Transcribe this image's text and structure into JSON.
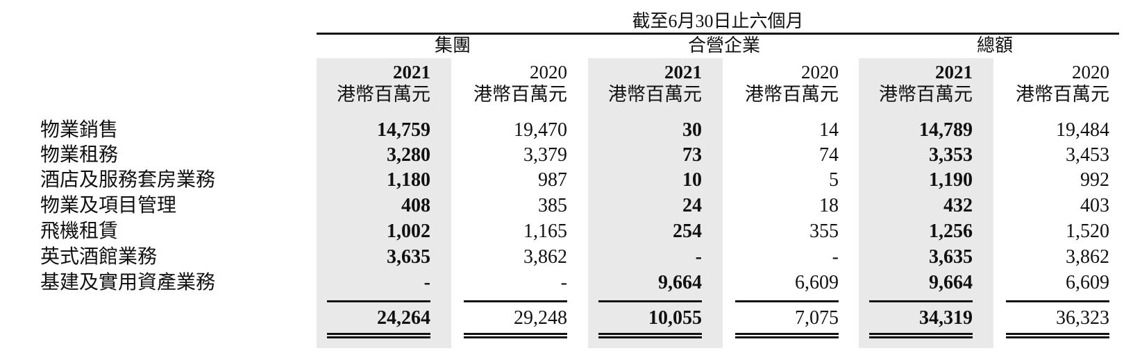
{
  "header": {
    "period": "截至6月30日止六個月",
    "groups": [
      "集團",
      "合營企業",
      "總額"
    ]
  },
  "columns": [
    {
      "year": "2021",
      "unit": "港幣百萬元"
    },
    {
      "year": "2020",
      "unit": "港幣百萬元"
    },
    {
      "year": "2021",
      "unit": "港幣百萬元"
    },
    {
      "year": "2020",
      "unit": "港幣百萬元"
    },
    {
      "year": "2021",
      "unit": "港幣百萬元"
    },
    {
      "year": "2020",
      "unit": "港幣百萬元"
    }
  ],
  "rows": [
    {
      "label": "物業銷售",
      "values": [
        "14,759",
        "19,470",
        "30",
        "14",
        "14,789",
        "19,484"
      ]
    },
    {
      "label": "物業租務",
      "values": [
        "3,280",
        "3,379",
        "73",
        "74",
        "3,353",
        "3,453"
      ]
    },
    {
      "label": "酒店及服務套房業務",
      "values": [
        "1,180",
        "987",
        "10",
        "5",
        "1,190",
        "992"
      ]
    },
    {
      "label": "物業及項目管理",
      "values": [
        "408",
        "385",
        "24",
        "18",
        "432",
        "403"
      ]
    },
    {
      "label": "飛機租賃",
      "values": [
        "1,002",
        "1,165",
        "254",
        "355",
        "1,256",
        "1,520"
      ]
    },
    {
      "label": "英式酒館業務",
      "values": [
        "3,635",
        "3,862",
        "-",
        "-",
        "3,635",
        "3,862"
      ]
    },
    {
      "label": "基建及實用資產業務",
      "values": [
        "-",
        "-",
        "9,664",
        "6,609",
        "9,664",
        "6,609"
      ]
    }
  ],
  "totals": [
    "24,264",
    "29,248",
    "10,055",
    "7,075",
    "34,319",
    "36,323"
  ]
}
